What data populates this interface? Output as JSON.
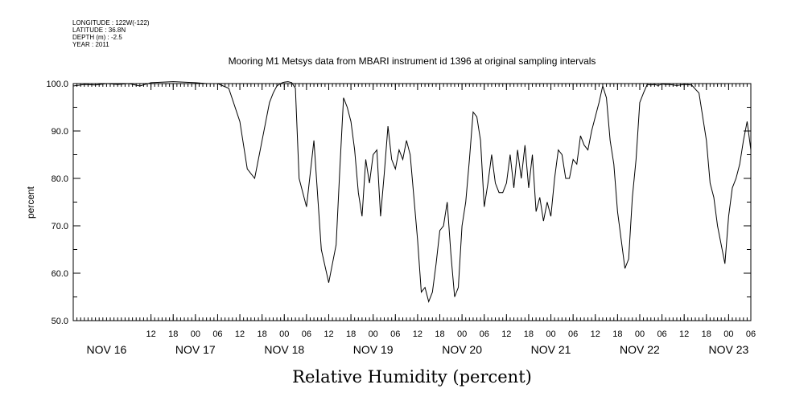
{
  "header": {
    "longitude": "LONGITUDE : 122W(-122)",
    "latitude": "LATITUDE : 36.8N",
    "depth": "DEPTH (m) : -2.5",
    "year": "YEAR : 2011"
  },
  "chart_data": {
    "type": "line",
    "title": "Mooring M1 Metsys data from MBARI instrument id 1396 at original sampling intervals",
    "xlabel": "Relative Humidity (percent)",
    "ylabel": "percent",
    "ylim": [
      50,
      100
    ],
    "y_ticks": [
      "50.0",
      "60.0",
      "70.0",
      "80.0",
      "90.0",
      "100.0"
    ],
    "x_unit": "hours since NOV 16 00:00",
    "xlim": [
      -9,
      174
    ],
    "hour_ticks": [
      {
        "h": 12,
        "label": "12"
      },
      {
        "h": 18,
        "label": "18"
      },
      {
        "h": 24,
        "label": "00"
      },
      {
        "h": 30,
        "label": "06"
      },
      {
        "h": 36,
        "label": "12"
      },
      {
        "h": 42,
        "label": "18"
      },
      {
        "h": 48,
        "label": "00"
      },
      {
        "h": 54,
        "label": "06"
      },
      {
        "h": 60,
        "label": "12"
      },
      {
        "h": 66,
        "label": "18"
      },
      {
        "h": 72,
        "label": "00"
      },
      {
        "h": 78,
        "label": "06"
      },
      {
        "h": 84,
        "label": "12"
      },
      {
        "h": 90,
        "label": "18"
      },
      {
        "h": 96,
        "label": "00"
      },
      {
        "h": 102,
        "label": "06"
      },
      {
        "h": 108,
        "label": "12"
      },
      {
        "h": 114,
        "label": "18"
      },
      {
        "h": 120,
        "label": "00"
      },
      {
        "h": 126,
        "label": "06"
      },
      {
        "h": 132,
        "label": "12"
      },
      {
        "h": 138,
        "label": "18"
      },
      {
        "h": 144,
        "label": "00"
      },
      {
        "h": 150,
        "label": "06"
      },
      {
        "h": 156,
        "label": "12"
      },
      {
        "h": 162,
        "label": "18"
      },
      {
        "h": 168,
        "label": "00"
      },
      {
        "h": 174,
        "label": "06"
      }
    ],
    "day_labels": [
      {
        "h": 0,
        "label": "NOV 16"
      },
      {
        "h": 24,
        "label": "NOV 17"
      },
      {
        "h": 48,
        "label": "NOV 18"
      },
      {
        "h": 72,
        "label": "NOV 19"
      },
      {
        "h": 96,
        "label": "NOV 20"
      },
      {
        "h": 120,
        "label": "NOV 21"
      },
      {
        "h": 144,
        "label": "NOV 22"
      },
      {
        "h": 168,
        "label": "NOV 23"
      }
    ],
    "series": [
      {
        "color": "#000000",
        "x": [
          -9,
          -6,
          -3,
          0,
          3,
          6,
          9,
          12,
          15,
          18,
          21,
          24,
          27,
          30,
          33,
          36,
          38,
          40,
          41,
          42,
          43,
          43.5,
          44,
          45,
          46,
          47,
          47.5,
          48,
          49,
          50,
          51,
          52,
          53,
          54,
          56,
          58,
          60,
          62,
          63,
          64,
          65,
          66,
          67,
          68,
          69,
          70,
          71,
          72,
          73,
          74,
          75,
          76,
          77,
          78,
          79,
          80,
          81,
          82,
          83,
          84,
          85,
          86,
          87,
          88,
          89,
          90,
          91,
          92,
          93,
          94,
          95,
          96,
          97,
          98,
          99,
          100,
          101,
          102,
          103,
          104,
          105,
          106,
          107,
          108,
          109,
          110,
          111,
          112,
          113,
          114,
          115,
          116,
          117,
          118,
          119,
          120,
          121,
          122,
          123,
          124,
          125,
          126,
          127,
          128,
          129,
          130,
          131,
          132,
          133,
          134,
          135,
          136,
          137,
          138,
          139,
          140,
          141,
          142,
          143,
          144,
          145,
          146,
          147,
          148,
          149,
          150,
          151,
          152,
          153,
          154,
          156,
          158,
          160,
          162,
          163,
          164,
          165,
          166,
          167,
          168,
          169,
          170,
          171,
          172,
          173,
          174
        ],
        "y": [
          99.5,
          99.8,
          99.7,
          100,
          99.8,
          100,
          99.5,
          100.2,
          100.3,
          100.4,
          100.3,
          100.2,
          100,
          100,
          99,
          92,
          82,
          80,
          84,
          88,
          92,
          94,
          96,
          98,
          99.5,
          100,
          100.2,
          100.3,
          100.4,
          100.2,
          99,
          80,
          77,
          74,
          88,
          65,
          58,
          66,
          82,
          97,
          95,
          92,
          86,
          77,
          72,
          84,
          79,
          85,
          86,
          72,
          81,
          91,
          84,
          82,
          86,
          84,
          88,
          85,
          76,
          67,
          56,
          57,
          54,
          56,
          62,
          69,
          70,
          75,
          64,
          55,
          57,
          70,
          75,
          84,
          94,
          93,
          88,
          74,
          79,
          85,
          79,
          77,
          77,
          79,
          85,
          78,
          86,
          80,
          87,
          78,
          85,
          73,
          76,
          71,
          75,
          72,
          80,
          86,
          85,
          80,
          80,
          84,
          83,
          89,
          87,
          86,
          90,
          93,
          96,
          99.5,
          97,
          88,
          83,
          73,
          67,
          61,
          63,
          76,
          84,
          96,
          98,
          99.8,
          99.7,
          99.8,
          99.6,
          99.9,
          99.8,
          99.8,
          99.7,
          99.6,
          99.8,
          99.7,
          98,
          88,
          79,
          76,
          70,
          66,
          62,
          72,
          78,
          80,
          83,
          88,
          92,
          86
        ]
      }
    ]
  }
}
